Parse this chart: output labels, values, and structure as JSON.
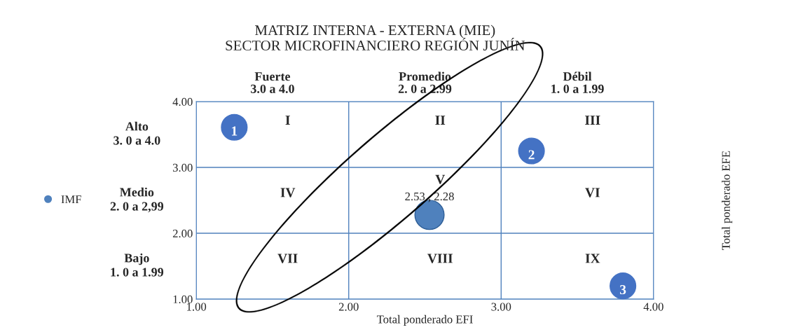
{
  "chart_data": {
    "type": "bubble",
    "title": "MATRIZ INTERNA - EXTERNA (MIE)\nSECTOR MICROFINANCIERO REGIÓN JUNÍN",
    "xlabel": "Total ponderado EFI",
    "ylabel": "Total ponderado EFE",
    "x": [
      2.53
    ],
    "series": [
      {
        "name": "IMF",
        "color": "#4f81bd",
        "values": [
          2.28
        ],
        "sizes": [
          1
        ],
        "value_labels": [
          "2.53 , 2.28"
        ]
      }
    ],
    "xlim": [
      1.0,
      4.0
    ],
    "xticks": [
      {
        "value": 1,
        "label": "1.00"
      },
      {
        "value": 2,
        "label": "2.00"
      },
      {
        "value": 3,
        "label": "3.00"
      },
      {
        "value": 4,
        "label": "4.00"
      }
    ],
    "ylim": [
      1.0,
      4.0
    ],
    "yticks": [
      {
        "value": 1,
        "label": "1.00"
      },
      {
        "value": 2,
        "label": "2.00"
      },
      {
        "value": 3,
        "label": "3.00"
      },
      {
        "value": 4,
        "label": "4.00"
      }
    ],
    "grid": true,
    "legend": "left",
    "marker": "circle",
    "annotations": [
      "Fuerte\n3.0 a 4.0",
      "Promedio\n2. 0 a 2.99",
      "Débil\n1. 0 a 1.99",
      "Alto\n3. 0 a 4.0",
      "Medio\n2. 0 a 2,99",
      "Bajo\n1. 0 a 1.99",
      "I",
      "II",
      "III",
      "IV",
      "V",
      "VI",
      "VII",
      "VIII",
      "IX",
      "1",
      "2",
      "3"
    ]
  }
}
